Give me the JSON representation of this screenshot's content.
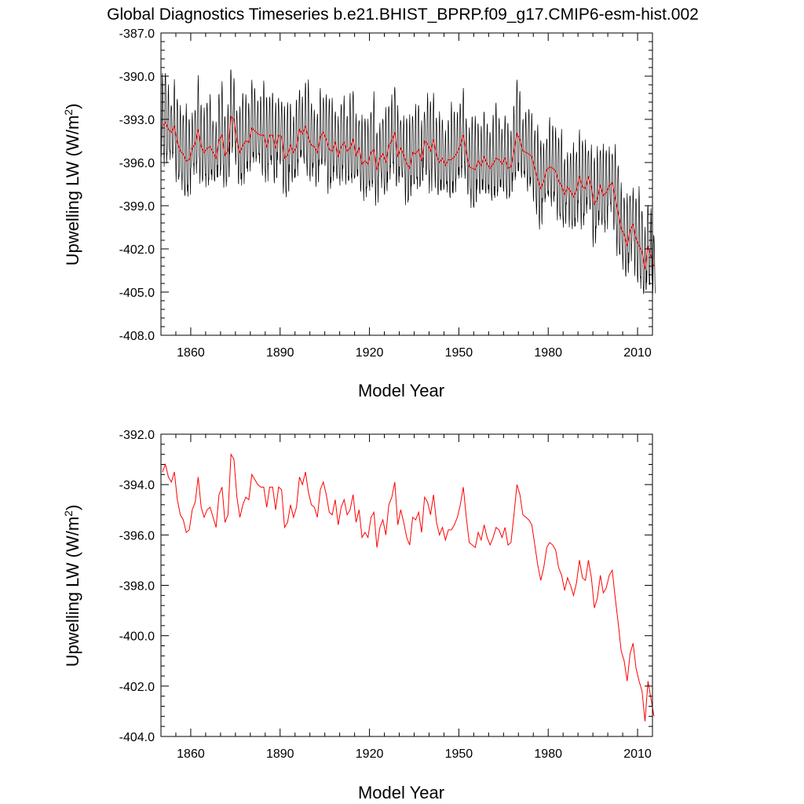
{
  "title": "Global Diagnostics Timeseries b.e21.BHIST_BPRP.f09_g17.CMIP6-esm-hist.002",
  "colors": {
    "monthly": "#000000",
    "annual": "#ff0000",
    "axes": "#000000",
    "background": "#ffffff"
  },
  "chart_data": [
    {
      "type": "line",
      "xlabel": "Model Year",
      "ylabel": "Upwelling LW (W/m",
      "ylabel_sup": "2",
      "ylabel_end": ")",
      "xlim": [
        1850,
        2015
      ],
      "ylim": [
        -408.0,
        -387.0
      ],
      "xticks": [
        1860,
        1890,
        1920,
        1950,
        1980,
        2010
      ],
      "yticks": [
        -387.0,
        -390.0,
        -393.0,
        -396.0,
        -399.0,
        -402.0,
        -405.0,
        -408.0
      ],
      "xtick_labels": [
        "1860",
        "1890",
        "1920",
        "1950",
        "1980",
        "2010"
      ],
      "ytick_labels": [
        "-387.0",
        "-390.0",
        "-393.0",
        "-396.0",
        "-399.0",
        "-402.0",
        "-405.0",
        "-408.0"
      ],
      "series": [
        {
          "color": "#000000",
          "monthly_cycle": {
            "note": "monthly values = annual mean + seasonal cycle",
            "seasonal_offsets_12": [
              -1.8,
              -2.2,
              -1.4,
              0.2,
              1.6,
              2.6,
              3.0,
              2.5,
              1.2,
              -0.4,
              -1.6,
              -2.0
            ]
          }
        },
        {
          "color": "#ff0000",
          "use_annual_from_panel": 1
        }
      ]
    },
    {
      "type": "line",
      "xlabel": "Model Year",
      "ylabel": "Upwelling LW (W/m",
      "ylabel_sup": "2",
      "ylabel_end": ")",
      "xlim": [
        1850,
        2015
      ],
      "ylim": [
        -404.0,
        -392.0
      ],
      "xticks": [
        1860,
        1890,
        1920,
        1950,
        1980,
        2010
      ],
      "yticks": [
        -392.0,
        -394.0,
        -396.0,
        -398.0,
        -400.0,
        -402.0,
        -404.0
      ],
      "xtick_labels": [
        "1860",
        "1890",
        "1920",
        "1950",
        "1980",
        "2010"
      ],
      "ytick_labels": [
        "-392.0",
        "-394.0",
        "-396.0",
        "-398.0",
        "-400.0",
        "-402.0",
        "-404.0"
      ],
      "series": [
        {
          "color": "#ff0000",
          "x_start": 1850,
          "x_step": 1,
          "values": [
            -393.5,
            -393.2,
            -393.7,
            -393.9,
            -393.5,
            -394.6,
            -395.2,
            -395.4,
            -395.9,
            -395.8,
            -395.0,
            -394.7,
            -393.7,
            -394.9,
            -395.3,
            -395.0,
            -394.9,
            -395.3,
            -395.7,
            -394.4,
            -394.1,
            -395.5,
            -395.2,
            -392.8,
            -393.0,
            -394.5,
            -395.3,
            -394.8,
            -394.5,
            -394.6,
            -393.6,
            -393.8,
            -394.0,
            -394.1,
            -394.1,
            -394.9,
            -394.1,
            -394.1,
            -395.0,
            -394.1,
            -394.2,
            -395.7,
            -395.5,
            -394.8,
            -395.3,
            -394.9,
            -393.7,
            -394.0,
            -393.5,
            -394.3,
            -394.8,
            -394.9,
            -395.3,
            -394.2,
            -393.9,
            -394.4,
            -395.1,
            -395.2,
            -394.6,
            -395.6,
            -394.9,
            -394.6,
            -395.2,
            -395.0,
            -394.4,
            -395.5,
            -395.0,
            -396.1,
            -395.9,
            -396.1,
            -395.3,
            -395.1,
            -396.5,
            -395.7,
            -395.4,
            -396.0,
            -394.8,
            -394.5,
            -393.9,
            -395.6,
            -395.0,
            -395.5,
            -396.1,
            -396.4,
            -395.3,
            -395.4,
            -395.1,
            -395.9,
            -394.5,
            -394.7,
            -395.2,
            -394.4,
            -395.5,
            -396.0,
            -395.7,
            -396.2,
            -395.8,
            -395.8,
            -395.6,
            -395.3,
            -394.8,
            -394.1,
            -395.3,
            -396.3,
            -396.4,
            -396.5,
            -395.9,
            -396.2,
            -395.6,
            -396.1,
            -396.4,
            -396.1,
            -395.7,
            -395.8,
            -396.1,
            -395.7,
            -396.4,
            -396.3,
            -395.2,
            -394.0,
            -394.4,
            -395.2,
            -395.3,
            -395.4,
            -395.6,
            -396.4,
            -397.2,
            -397.8,
            -397.3,
            -396.5,
            -396.3,
            -396.4,
            -396.6,
            -397.3,
            -397.6,
            -398.2,
            -397.7,
            -398.0,
            -398.4,
            -397.9,
            -397.0,
            -397.7,
            -397.8,
            -397.0,
            -397.7,
            -398.9,
            -398.5,
            -397.6,
            -398.3,
            -398.1,
            -397.6,
            -397.4,
            -398.5,
            -399.5,
            -400.6,
            -401.0,
            -401.8,
            -400.7,
            -400.3,
            -401.3,
            -401.8,
            -402.2,
            -403.4,
            -401.8,
            -402.5,
            -403.2
          ]
        }
      ]
    }
  ]
}
